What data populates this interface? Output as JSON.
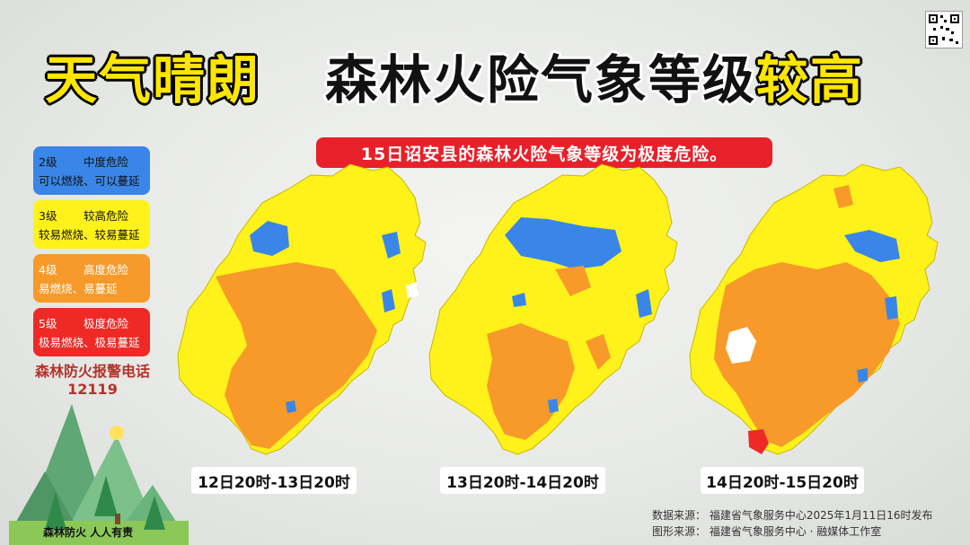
{
  "header": {
    "title_left": "天气晴朗",
    "title_right_main": "森林火险气象等级",
    "title_right_highlight": "较高"
  },
  "banner": {
    "text": "15日诏安县的森林火险气象等级为极度危险。"
  },
  "legend": [
    {
      "level": "2级",
      "name": "中度危险",
      "desc": "可以燃烧、可以蔓延",
      "color": "#3a86e8",
      "text_color": "#111111"
    },
    {
      "level": "3级",
      "name": "较高危险",
      "desc": "较易燃烧、较易蔓延",
      "color": "#fff21a",
      "text_color": "#111111"
    },
    {
      "level": "4级",
      "name": "高度危险",
      "desc": "易燃烧、易蔓延",
      "color": "#f79a2a",
      "text_color": "#ffffff"
    },
    {
      "level": "5级",
      "name": "极度危险",
      "desc": "极易燃烧、极易蔓延",
      "color": "#ef2a26",
      "text_color": "#ffffff"
    }
  ],
  "hotline": {
    "label": "森林防火报警电话",
    "number": "12119"
  },
  "maps": [
    {
      "period": "12日20时-13日20时",
      "dominant": "4级",
      "extra_levels": [
        "3级",
        "2级"
      ]
    },
    {
      "period": "13日20时-14日20时",
      "dominant": "3级",
      "extra_levels": [
        "4级",
        "2级"
      ]
    },
    {
      "period": "14日20时-15日20时",
      "dominant": "3级",
      "extra_levels": [
        "4级",
        "2级",
        "5级"
      ]
    }
  ],
  "source": {
    "data_line": "数据来源：  福建省气象服务中心2025年1月11日16时发布",
    "graphic_line": "图形来源：  福建省气象服务中心 · 融媒体工作室"
  },
  "slogan": "森林防火 人人有责",
  "colors": {
    "level2": "#3a86e8",
    "level3": "#fff21a",
    "level4": "#f79a2a",
    "level5": "#ef2a26",
    "nodata": "#ffffff"
  }
}
